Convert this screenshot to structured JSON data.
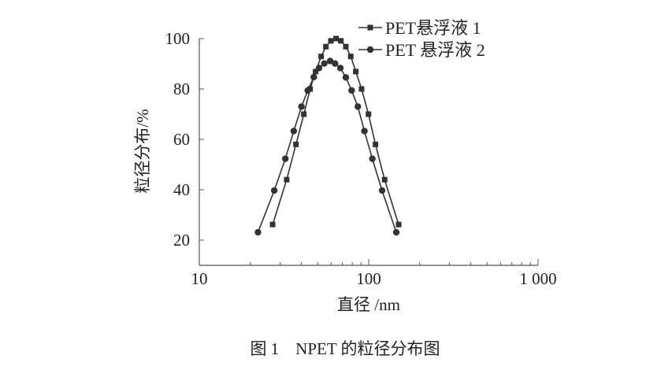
{
  "chart_data": {
    "type": "line",
    "title": "",
    "caption": "图 1　NPET 的粒径分布图",
    "xlabel": "直径 /nm",
    "ylabel": "粒径分布/%",
    "xscale": "log",
    "xlim": [
      10,
      1000
    ],
    "ylim": [
      10,
      100
    ],
    "xticks": [
      10,
      100,
      1000
    ],
    "xtick_labels": [
      "10",
      "100",
      "1 000"
    ],
    "yticks": [
      20,
      40,
      60,
      80,
      100
    ],
    "ytick_labels": [
      "20",
      "40",
      "60",
      "80",
      "100"
    ],
    "grid": false,
    "legend_position": "top-right",
    "colors": {
      "line": "#333333"
    },
    "series": [
      {
        "name": "PET悬浮液 1",
        "marker": "square",
        "x": [
          27.1,
          32.8,
          37.2,
          41.4,
          45.1,
          48.6,
          52.4,
          55.9,
          59.8,
          64.2,
          68.5,
          73.3,
          78.4,
          83.9,
          90.8,
          99.7,
          109.7,
          124.2,
          150.3
        ],
        "y": [
          26.2,
          44.0,
          58.0,
          70.0,
          80.0,
          86.9,
          92.9,
          96.8,
          99.1,
          100.0,
          99.1,
          96.8,
          92.9,
          86.9,
          80.0,
          70.0,
          58.0,
          44.0,
          26.2
        ]
      },
      {
        "name": "PET 悬浮液 2",
        "marker": "circle",
        "x": [
          22.2,
          27.7,
          32.2,
          36.1,
          40.1,
          43.7,
          47.4,
          50.9,
          54.7,
          59.2,
          63.3,
          68.0,
          73.3,
          79.3,
          86.3,
          94.4,
          105.1,
          120.0,
          145.5
        ],
        "y": [
          23.1,
          39.7,
          52.3,
          63.3,
          73.0,
          79.4,
          84.7,
          88.3,
          90.1,
          91.1,
          90.1,
          88.3,
          84.6,
          79.4,
          73.0,
          63.3,
          52.3,
          39.7,
          23.1
        ]
      }
    ]
  }
}
